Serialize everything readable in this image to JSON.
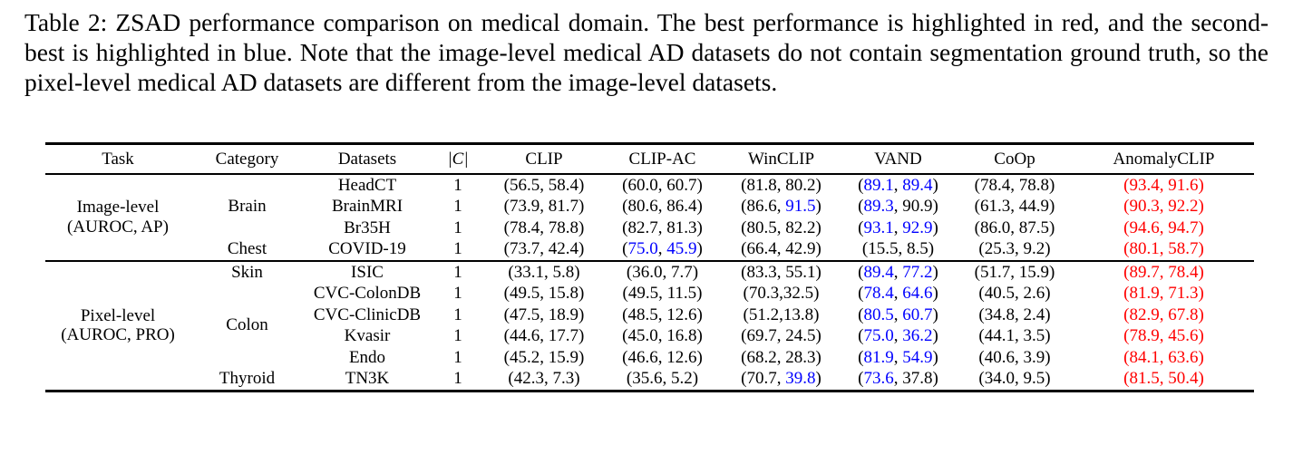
{
  "caption": "Table 2: ZSAD performance comparison on medical domain. The best performance is highlighted in red, and the second-best is highlighted in blue. Note that the image-level medical AD datasets do not contain segmentation ground truth, so the pixel-level medical AD datasets are different from the image-level datasets.",
  "colors": {
    "black": "#000000",
    "blue": "#0000ff",
    "red": "#ff0000"
  },
  "table": {
    "headers": [
      "Task",
      "Category",
      "Datasets",
      "|C|",
      "CLIP",
      "CLIP-AC",
      "WinCLIP",
      "VAND",
      "CoOp",
      "AnomalyCLIP"
    ],
    "groups": [
      {
        "task_lines": [
          "Image-level",
          "(AUROC, AP)"
        ],
        "categories": [
          {
            "name": "Brain",
            "rows": [
              {
                "dataset": "HeadCT",
                "c": "1",
                "cells": [
                  [
                    "56.5",
                    "58.4",
                    "k",
                    "k",
                    "k"
                  ],
                  [
                    "60.0",
                    "60.7",
                    "k",
                    "k",
                    "k"
                  ],
                  [
                    "81.8",
                    "80.2",
                    "k",
                    "k",
                    "k"
                  ],
                  [
                    "89.1",
                    "89.4",
                    "b",
                    "b",
                    "k"
                  ],
                  [
                    "78.4",
                    "78.8",
                    "k",
                    "k",
                    "k"
                  ],
                  [
                    "93.4",
                    "91.6",
                    "r",
                    "r",
                    "r"
                  ]
                ]
              },
              {
                "dataset": "BrainMRI",
                "c": "1",
                "cells": [
                  [
                    "73.9",
                    "81.7",
                    "k",
                    "k",
                    "k"
                  ],
                  [
                    "80.6",
                    "86.4",
                    "k",
                    "k",
                    "k"
                  ],
                  [
                    "86.6",
                    "91.5",
                    "k",
                    "b",
                    "k"
                  ],
                  [
                    "89.3",
                    "90.9",
                    "b",
                    "k",
                    "k"
                  ],
                  [
                    "61.3",
                    "44.9",
                    "k",
                    "k",
                    "k"
                  ],
                  [
                    "90.3",
                    "92.2",
                    "r",
                    "r",
                    "r"
                  ]
                ]
              },
              {
                "dataset": "Br35H",
                "c": "1",
                "cells": [
                  [
                    "78.4",
                    "78.8",
                    "k",
                    "k",
                    "k"
                  ],
                  [
                    "82.7",
                    "81.3",
                    "k",
                    "k",
                    "k"
                  ],
                  [
                    "80.5",
                    "82.2",
                    "k",
                    "k",
                    "k"
                  ],
                  [
                    "93.1",
                    "92.9",
                    "b",
                    "b",
                    "k"
                  ],
                  [
                    "86.0",
                    "87.5",
                    "k",
                    "k",
                    "k"
                  ],
                  [
                    "94.6",
                    "94.7",
                    "r",
                    "r",
                    "r"
                  ]
                ]
              }
            ]
          },
          {
            "name": "Chest",
            "rows": [
              {
                "dataset": "COVID-19",
                "c": "1",
                "cells": [
                  [
                    "73.7",
                    "42.4",
                    "k",
                    "k",
                    "k"
                  ],
                  [
                    "75.0",
                    "45.9",
                    "b",
                    "b",
                    "k"
                  ],
                  [
                    "66.4",
                    "42.9",
                    "k",
                    "k",
                    "k"
                  ],
                  [
                    "15.5",
                    "8.5",
                    "k",
                    "k",
                    "k"
                  ],
                  [
                    "25.3",
                    "9.2",
                    "k",
                    "k",
                    "k"
                  ],
                  [
                    "80.1",
                    "58.7",
                    "r",
                    "r",
                    "r"
                  ]
                ]
              }
            ]
          }
        ]
      },
      {
        "task_lines": [
          "Pixel-level",
          "(AUROC, PRO)"
        ],
        "categories": [
          {
            "name": "Skin",
            "rows": [
              {
                "dataset": "ISIC",
                "c": "1",
                "cells": [
                  [
                    "33.1",
                    "5.8",
                    "k",
                    "k",
                    "k"
                  ],
                  [
                    "36.0",
                    "7.7",
                    "k",
                    "k",
                    "k"
                  ],
                  [
                    "83.3",
                    "55.1",
                    "k",
                    "k",
                    "k"
                  ],
                  [
                    "89.4",
                    "77.2",
                    "b",
                    "b",
                    "k"
                  ],
                  [
                    "51.7",
                    "15.9",
                    "k",
                    "k",
                    "k"
                  ],
                  [
                    "89.7",
                    "78.4",
                    "r",
                    "r",
                    "r"
                  ]
                ]
              }
            ]
          },
          {
            "name": "Colon",
            "rows": [
              {
                "dataset": "CVC-ColonDB",
                "c": "1",
                "cells": [
                  [
                    "49.5",
                    "15.8",
                    "k",
                    "k",
                    "k"
                  ],
                  [
                    "49.5",
                    "11.5",
                    "k",
                    "k",
                    "k"
                  ],
                  [
                    "70.3",
                    "32.5",
                    "k",
                    "k",
                    "k",
                    ","
                  ],
                  [
                    "78.4",
                    "64.6",
                    "b",
                    "b",
                    "k"
                  ],
                  [
                    "40.5",
                    "2.6",
                    "k",
                    "k",
                    "k"
                  ],
                  [
                    "81.9",
                    "71.3",
                    "r",
                    "r",
                    "r"
                  ]
                ]
              },
              {
                "dataset": "CVC-ClinicDB",
                "c": "1",
                "cells": [
                  [
                    "47.5",
                    "18.9",
                    "k",
                    "k",
                    "k"
                  ],
                  [
                    "48.5",
                    "12.6",
                    "k",
                    "k",
                    "k"
                  ],
                  [
                    "51.2",
                    "13.8",
                    "k",
                    "k",
                    "k",
                    ","
                  ],
                  [
                    "80.5",
                    "60.7",
                    "b",
                    "b",
                    "k"
                  ],
                  [
                    "34.8",
                    "2.4",
                    "k",
                    "k",
                    "k"
                  ],
                  [
                    "82.9",
                    "67.8",
                    "r",
                    "r",
                    "r"
                  ]
                ]
              },
              {
                "dataset": "Kvasir",
                "c": "1",
                "cells": [
                  [
                    "44.6",
                    "17.7",
                    "k",
                    "k",
                    "k"
                  ],
                  [
                    "45.0",
                    "16.8",
                    "k",
                    "k",
                    "k"
                  ],
                  [
                    "69.7",
                    "24.5",
                    "k",
                    "k",
                    "k"
                  ],
                  [
                    "75.0",
                    "36.2",
                    "b",
                    "b",
                    "k"
                  ],
                  [
                    "44.1",
                    "3.5",
                    "k",
                    "k",
                    "k"
                  ],
                  [
                    "78.9",
                    "45.6",
                    "r",
                    "r",
                    "r"
                  ]
                ]
              },
              {
                "dataset": "Endo",
                "c": "1",
                "cells": [
                  [
                    "45.2",
                    "15.9",
                    "k",
                    "k",
                    "k"
                  ],
                  [
                    "46.6",
                    "12.6",
                    "k",
                    "k",
                    "k"
                  ],
                  [
                    "68.2",
                    "28.3",
                    "k",
                    "k",
                    "k"
                  ],
                  [
                    "81.9",
                    "54.9",
                    "b",
                    "b",
                    "k"
                  ],
                  [
                    "40.6",
                    "3.9",
                    "k",
                    "k",
                    "k"
                  ],
                  [
                    "84.1",
                    "63.6",
                    "r",
                    "r",
                    "r"
                  ]
                ]
              }
            ]
          },
          {
            "name": "Thyroid",
            "rows": [
              {
                "dataset": "TN3K",
                "c": "1",
                "cells": [
                  [
                    "42.3",
                    "7.3",
                    "k",
                    "k",
                    "k"
                  ],
                  [
                    "35.6",
                    "5.2",
                    "k",
                    "k",
                    "k"
                  ],
                  [
                    "70.7",
                    "39.8",
                    "k",
                    "b",
                    "k"
                  ],
                  [
                    "73.6",
                    "37.8",
                    "b",
                    "k",
                    "k"
                  ],
                  [
                    "34.0",
                    "9.5",
                    "k",
                    "k",
                    "k"
                  ],
                  [
                    "81.5",
                    "50.4",
                    "r",
                    "r",
                    "r"
                  ]
                ]
              }
            ]
          }
        ]
      }
    ]
  }
}
